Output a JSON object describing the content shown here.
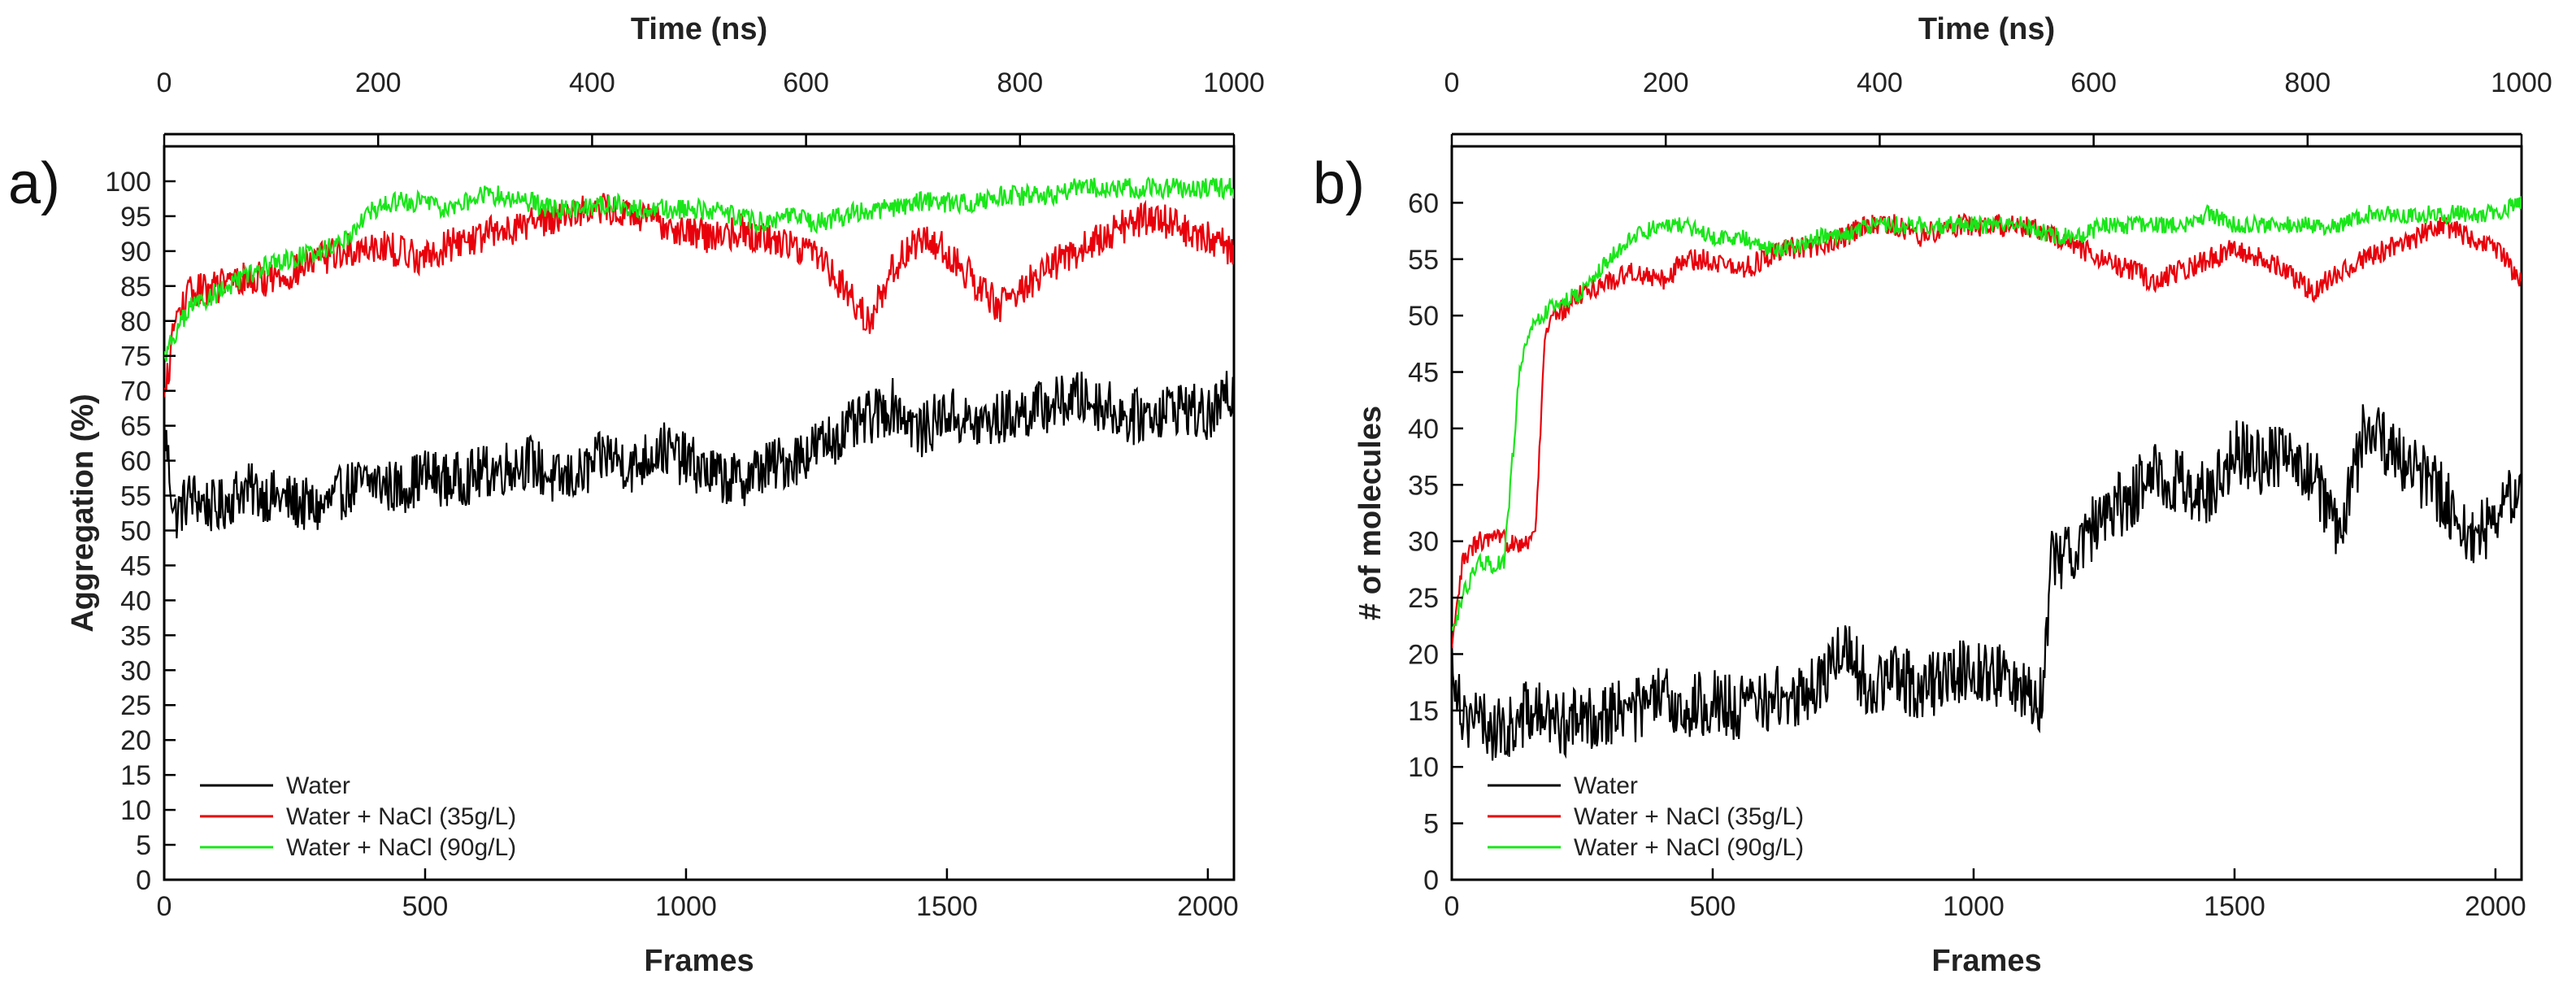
{
  "chart_data": [
    {
      "type": "line",
      "panel_label": "a)",
      "xlabel": "Frames",
      "x2label": "Time (ns)",
      "ylabel": "Aggregation (%)",
      "xlim": [
        0,
        2050
      ],
      "x2lim": [
        0,
        1000
      ],
      "ylim": [
        0,
        105
      ],
      "xticks": [
        0,
        500,
        1000,
        1500,
        2000
      ],
      "x2ticks": [
        0,
        200,
        400,
        600,
        800,
        1000
      ],
      "yticks": [
        0,
        5,
        10,
        15,
        20,
        25,
        30,
        35,
        40,
        45,
        50,
        55,
        60,
        65,
        70,
        75,
        80,
        85,
        90,
        95,
        100
      ],
      "legend_position": "bottom-left",
      "series": [
        {
          "name": "Water",
          "color": "#000000",
          "x": [
            0,
            20,
            50,
            100,
            150,
            200,
            250,
            300,
            350,
            400,
            450,
            500,
            550,
            600,
            650,
            700,
            750,
            800,
            850,
            900,
            950,
            1000,
            1050,
            1100,
            1150,
            1200,
            1250,
            1300,
            1350,
            1400,
            1450,
            1500,
            1550,
            1600,
            1650,
            1700,
            1750,
            1800,
            1850,
            1900,
            1950,
            2000,
            2050
          ],
          "y": [
            65,
            52,
            55,
            53,
            56,
            55,
            54,
            53,
            56,
            57,
            56,
            58,
            57,
            58,
            59,
            60,
            57,
            58,
            61,
            59,
            62,
            60,
            58,
            57,
            59,
            60,
            62,
            64,
            66,
            68,
            64,
            67,
            65,
            66,
            67,
            68,
            69,
            68,
            66,
            67,
            68,
            66,
            70
          ],
          "noise": 4
        },
        {
          "name": "Water + NaCl (35g/L)",
          "color": "#e8000b",
          "x": [
            0,
            20,
            50,
            100,
            150,
            200,
            250,
            300,
            350,
            400,
            450,
            500,
            550,
            600,
            650,
            700,
            750,
            800,
            850,
            900,
            950,
            1000,
            1050,
            1100,
            1150,
            1200,
            1250,
            1300,
            1350,
            1400,
            1450,
            1500,
            1550,
            1600,
            1650,
            1700,
            1750,
            1800,
            1850,
            1900,
            1950,
            2000,
            2050
          ],
          "y": [
            68,
            80,
            84,
            85,
            86,
            86,
            87,
            89,
            90,
            91,
            90,
            89,
            91,
            92,
            93,
            94,
            95,
            96,
            96,
            95,
            94,
            93,
            92,
            93,
            92,
            91,
            90,
            85,
            80,
            88,
            92,
            90,
            86,
            82,
            85,
            88,
            90,
            92,
            94,
            95,
            93,
            92,
            90
          ],
          "noise": 2.5
        },
        {
          "name": "Water + NaCl (90g/L)",
          "color": "#19e619",
          "x": [
            0,
            20,
            50,
            100,
            150,
            200,
            250,
            300,
            350,
            400,
            450,
            500,
            550,
            600,
            650,
            700,
            750,
            800,
            850,
            900,
            950,
            1000,
            1050,
            1100,
            1150,
            1200,
            1250,
            1300,
            1350,
            1400,
            1450,
            1500,
            1550,
            1600,
            1650,
            1700,
            1750,
            1800,
            1850,
            1900,
            1950,
            2000,
            2050
          ],
          "y": [
            75,
            78,
            82,
            84,
            86,
            88,
            89,
            90,
            92,
            96,
            97,
            97,
            96,
            98,
            98,
            97,
            96,
            96,
            97,
            96,
            96,
            96,
            96,
            95,
            94,
            95,
            94,
            95,
            96,
            96,
            97,
            97,
            97,
            98,
            98,
            98,
            99,
            99,
            99,
            99,
            99,
            99,
            99
          ],
          "noise": 1.5
        }
      ]
    },
    {
      "type": "line",
      "panel_label": "b)",
      "xlabel": "Frames",
      "x2label": "Time (ns)",
      "ylabel": "# of molecules",
      "xlim": [
        0,
        2050
      ],
      "x2lim": [
        0,
        1000
      ],
      "ylim": [
        0,
        65
      ],
      "xticks": [
        0,
        500,
        1000,
        1500,
        2000
      ],
      "x2ticks": [
        0,
        200,
        400,
        600,
        800,
        1000
      ],
      "yticks": [
        0,
        5,
        10,
        15,
        20,
        25,
        30,
        35,
        40,
        45,
        50,
        55,
        60
      ],
      "legend_position": "bottom-left",
      "series": [
        {
          "name": "Water",
          "color": "#000000",
          "x": [
            0,
            20,
            50,
            100,
            150,
            200,
            250,
            300,
            350,
            400,
            450,
            500,
            550,
            600,
            650,
            700,
            750,
            800,
            850,
            900,
            950,
            1000,
            1050,
            1100,
            1130,
            1150,
            1200,
            1250,
            1300,
            1350,
            1400,
            1450,
            1500,
            1550,
            1600,
            1650,
            1700,
            1750,
            1800,
            1850,
            1900,
            1950,
            2000,
            2050
          ],
          "y": [
            20,
            15,
            14,
            13,
            15,
            14,
            14,
            15,
            15,
            16,
            15,
            16,
            15,
            16,
            16,
            17,
            21,
            17,
            18,
            17,
            18,
            19,
            18,
            17,
            16,
            28,
            30,
            32,
            34,
            36,
            35,
            34,
            38,
            37,
            38,
            36,
            30,
            40,
            38,
            36,
            34,
            30,
            32,
            36
          ],
          "noise": 3
        },
        {
          "name": "Water + NaCl (35g/L)",
          "color": "#e8000b",
          "x": [
            0,
            20,
            50,
            100,
            150,
            160,
            180,
            200,
            250,
            300,
            350,
            400,
            450,
            500,
            550,
            600,
            650,
            700,
            750,
            800,
            850,
            900,
            950,
            1000,
            1050,
            1100,
            1150,
            1200,
            1250,
            1300,
            1350,
            1400,
            1450,
            1500,
            1550,
            1600,
            1650,
            1700,
            1750,
            1800,
            1850,
            1900,
            1950,
            2000,
            2050
          ],
          "y": [
            20,
            28,
            30,
            30,
            30,
            31,
            49,
            50,
            52,
            53,
            54,
            53,
            55,
            55,
            54,
            55,
            56,
            56,
            57,
            58,
            58,
            57,
            58,
            58,
            58,
            58,
            57,
            56,
            55,
            54,
            53,
            54,
            55,
            56,
            55,
            54,
            52,
            54,
            55,
            56,
            57,
            58,
            57,
            56,
            53
          ],
          "noise": 1
        },
        {
          "name": "Water + NaCl (90g/L)",
          "color": "#19e619",
          "x": [
            0,
            20,
            50,
            100,
            130,
            150,
            200,
            250,
            300,
            350,
            400,
            450,
            500,
            550,
            600,
            650,
            700,
            750,
            800,
            850,
            900,
            950,
            1000,
            1050,
            1100,
            1150,
            1200,
            1250,
            1300,
            1350,
            1400,
            1450,
            1500,
            1550,
            1600,
            1650,
            1700,
            1750,
            1800,
            1850,
            1900,
            1950,
            2000,
            2050
          ],
          "y": [
            22,
            25,
            28,
            28,
            45,
            49,
            51,
            52,
            55,
            57,
            58,
            58,
            57,
            57,
            56,
            56,
            57,
            57,
            58,
            58,
            58,
            58,
            58,
            58,
            58,
            57,
            57,
            58,
            58,
            58,
            58,
            59,
            58,
            58,
            58,
            58,
            58,
            59,
            59,
            59,
            59,
            59,
            59,
            60
          ],
          "noise": 0.8
        }
      ]
    }
  ]
}
